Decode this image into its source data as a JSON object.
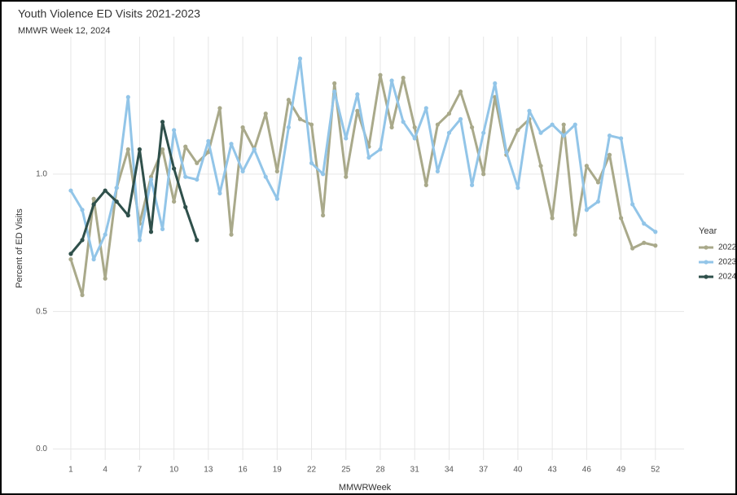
{
  "chart_data": {
    "type": "line",
    "title": "Youth Violence ED Visits 2021-2023",
    "subtitle": "MMWR Week 12, 2024",
    "x_label": "MMWRWeek",
    "y_label": "Percent of ED Visits",
    "legend_title": "Year",
    "legend": "right",
    "grid": true,
    "x": [
      1,
      2,
      3,
      4,
      5,
      6,
      7,
      8,
      9,
      10,
      11,
      12,
      13,
      14,
      15,
      16,
      17,
      18,
      19,
      20,
      21,
      22,
      23,
      24,
      25,
      26,
      27,
      28,
      29,
      30,
      31,
      32,
      33,
      34,
      35,
      36,
      37,
      38,
      39,
      40,
      41,
      42,
      43,
      44,
      45,
      46,
      47,
      48,
      49,
      50,
      51,
      52
    ],
    "xlim": [
      -0.56,
      54.5
    ],
    "xticks": [
      1,
      4,
      7,
      10,
      13,
      16,
      19,
      22,
      25,
      28,
      31,
      34,
      37,
      40,
      43,
      46,
      49,
      52
    ],
    "ylim": [
      -0.04,
      1.5
    ],
    "yticks": [
      {
        "value": 0,
        "label": "0.0"
      },
      {
        "value": 0.5,
        "label": "0.5"
      },
      {
        "value": 1,
        "label": "1.0"
      }
    ],
    "series": [
      {
        "name": "2022",
        "color": "#a9a98a",
        "values": [
          0.69,
          0.56,
          0.91,
          0.62,
          0.95,
          1.09,
          0.82,
          0.99,
          1.09,
          0.9,
          1.1,
          1.04,
          1.08,
          1.24,
          0.78,
          1.17,
          1.09,
          1.22,
          1.01,
          1.27,
          1.2,
          1.18,
          0.85,
          1.33,
          0.99,
          1.23,
          1.1,
          1.36,
          1.17,
          1.35,
          1.17,
          0.96,
          1.18,
          1.22,
          1.3,
          1.17,
          1.0,
          1.28,
          1.07,
          1.16,
          1.2,
          1.03,
          0.84,
          1.18,
          0.78,
          1.03,
          0.97,
          1.07,
          0.84,
          0.73,
          0.75,
          0.74
        ]
      },
      {
        "name": "2023",
        "color": "#92c5e8",
        "values": [
          0.94,
          0.87,
          0.69,
          0.78,
          0.95,
          1.28,
          0.76,
          0.98,
          0.8,
          1.16,
          0.99,
          0.98,
          1.12,
          0.93,
          1.11,
          1.01,
          1.09,
          0.99,
          0.91,
          1.17,
          1.42,
          1.04,
          1.0,
          1.3,
          1.13,
          1.29,
          1.06,
          1.09,
          1.34,
          1.19,
          1.13,
          1.24,
          1.01,
          1.15,
          1.2,
          0.96,
          1.15,
          1.33,
          1.08,
          0.95,
          1.23,
          1.15,
          1.18,
          1.14,
          1.18,
          0.87,
          0.9,
          1.14,
          1.13,
          0.89,
          0.82,
          0.79
        ]
      },
      {
        "name": "2024",
        "color": "#2f504b",
        "values": [
          0.71,
          0.76,
          0.89,
          0.94,
          0.9,
          0.85,
          1.09,
          0.79,
          1.19,
          1.02,
          0.88,
          0.76,
          null,
          null,
          null,
          null,
          null,
          null,
          null,
          null,
          null,
          null,
          null,
          null,
          null,
          null,
          null,
          null,
          null,
          null,
          null,
          null,
          null,
          null,
          null,
          null,
          null,
          null,
          null,
          null,
          null,
          null,
          null,
          null,
          null,
          null,
          null,
          null,
          null,
          null,
          null,
          null
        ]
      }
    ]
  }
}
